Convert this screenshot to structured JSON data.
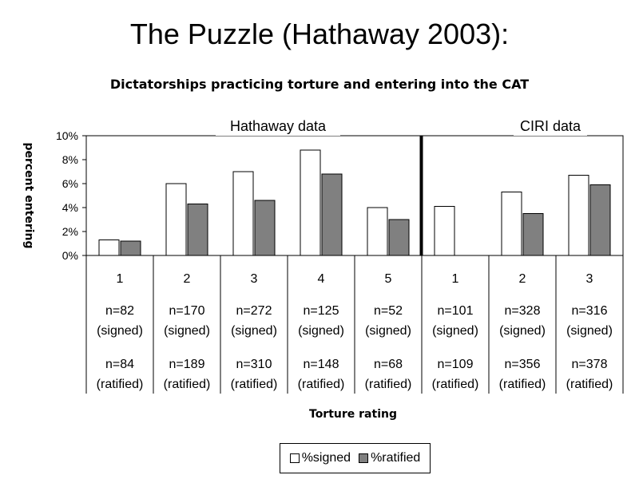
{
  "slide_title": "The Puzzle (Hathaway 2003):",
  "chart_data": {
    "type": "bar",
    "title": "Dictatorships practicing torture and entering into the CAT",
    "ylabel": "percent entering",
    "xlabel": "Torture rating",
    "ylim": [
      0,
      10
    ],
    "y_ticks": [
      "0%",
      "2%",
      "4%",
      "6%",
      "8%",
      "10%"
    ],
    "groups": [
      {
        "label": "Hathaway data",
        "start": 0,
        "end": 4
      },
      {
        "label": "CIRI data",
        "start": 5,
        "end": 7
      }
    ],
    "categories": [
      "1",
      "2",
      "3",
      "4",
      "5",
      "1",
      "2",
      "3"
    ],
    "n_signed": [
      "n=82",
      "n=170",
      "n=272",
      "n=125",
      "n=52",
      "n=101",
      "n=328",
      "n=316"
    ],
    "signed_note": "(signed)",
    "n_ratified": [
      "n=84",
      "n=189",
      "n=310",
      "n=148",
      "n=68",
      "n=109",
      "n=356",
      "n=378"
    ],
    "ratified_note": "(ratified)",
    "series": [
      {
        "name": "%signed",
        "color": "#ffffff",
        "values": [
          1.3,
          6.0,
          7.0,
          8.8,
          4.0,
          4.1,
          5.3,
          6.7
        ]
      },
      {
        "name": "%ratified",
        "color": "#808080",
        "values": [
          1.2,
          4.3,
          4.6,
          6.8,
          3.0,
          0,
          3.5,
          5.9
        ]
      }
    ],
    "grid": false,
    "legend_position": "bottom"
  }
}
